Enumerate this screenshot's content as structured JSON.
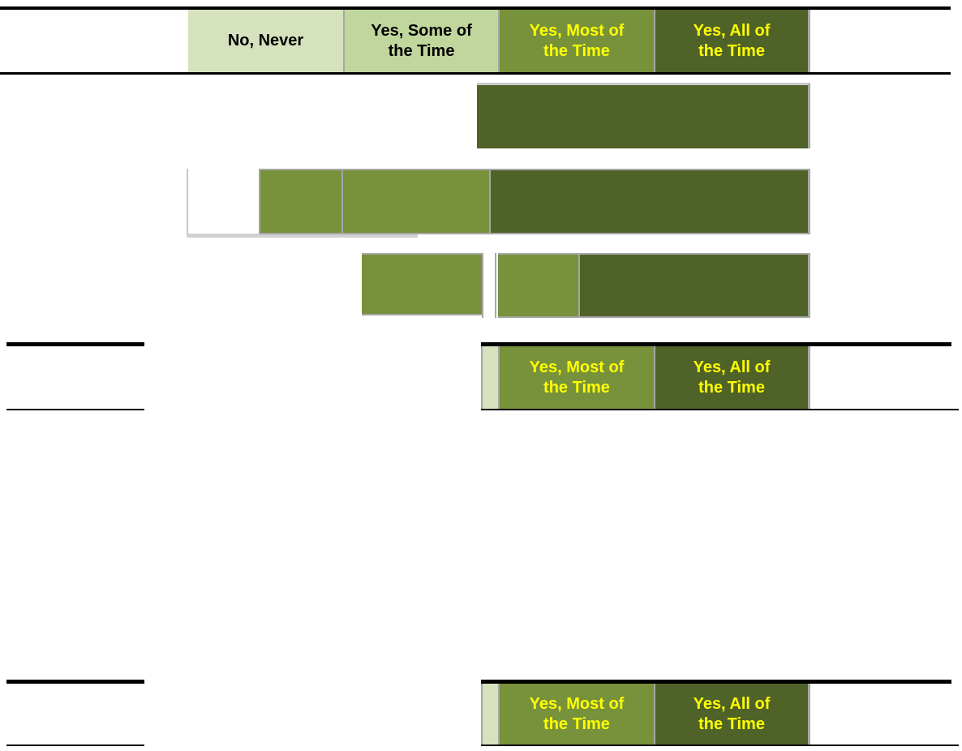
{
  "legend_top": {
    "no_never": "No, Never",
    "some_time": "Yes, Some of\nthe Time",
    "most_time": "Yes, Most of\nthe Time",
    "all_time": "Yes, All of\nthe Time"
  },
  "legend_mid": {
    "most_time": "Yes, Most of\nthe Time",
    "all_time": "Yes, All of\nthe Time"
  },
  "legend_bottom": {
    "most_time": "Yes, Most of\nthe Time",
    "all_time": "Yes, All of\nthe Time"
  },
  "colors": {
    "no_never": "#d5e2bd",
    "some_time": "#c1d69d",
    "most_time": "#77923b",
    "all_time": "#4f6228",
    "label_highlight": "#ffff00"
  }
}
